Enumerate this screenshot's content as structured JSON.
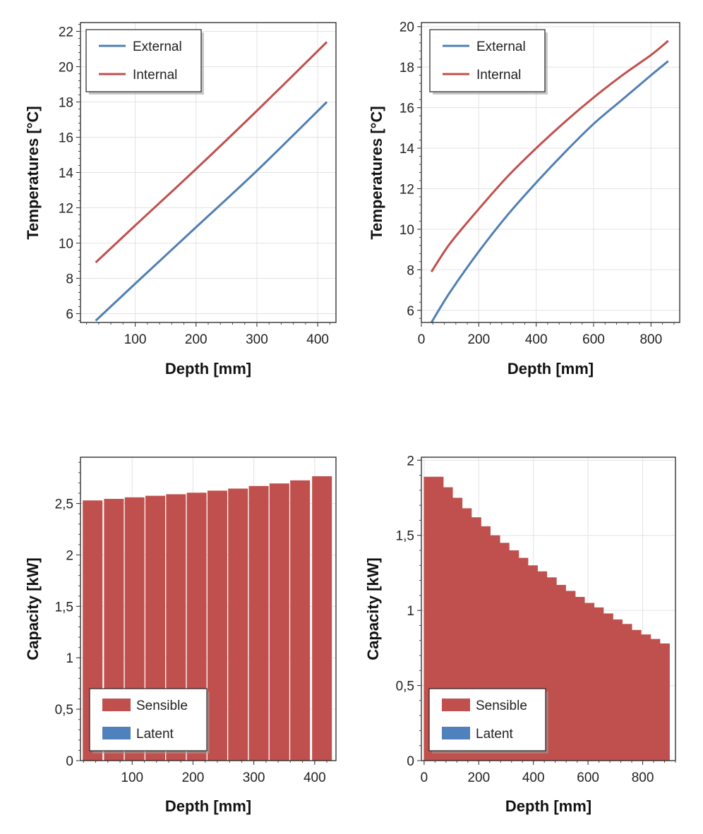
{
  "chart_data": [
    {
      "type": "line",
      "xlabel": "Depth [mm]",
      "ylabel": "Temperatures [°C]",
      "xlim": [
        10,
        430
      ],
      "ylim": [
        5.5,
        22.5
      ],
      "xticks": [
        100,
        200,
        300,
        400
      ],
      "xtick_labels": [
        "100",
        "200",
        "300",
        "400"
      ],
      "yticks": [
        6,
        8,
        10,
        12,
        14,
        16,
        18,
        20,
        22
      ],
      "ytick_labels": [
        "6",
        "8",
        "10",
        "12",
        "14",
        "16",
        "18",
        "20",
        "22"
      ],
      "grid": true,
      "legend_position": "top-left",
      "series": [
        {
          "name": "External",
          "color": "#4f7fb4",
          "x": [
            35,
            100,
            200,
            300,
            415
          ],
          "y": [
            5.6,
            7.7,
            10.9,
            14.1,
            18.0
          ]
        },
        {
          "name": "Internal",
          "color": "#c0504d",
          "x": [
            35,
            100,
            200,
            300,
            415
          ],
          "y": [
            8.9,
            11.0,
            14.2,
            17.5,
            21.4
          ]
        }
      ]
    },
    {
      "type": "line",
      "xlabel": "Depth [mm]",
      "ylabel": "Temperatures [°C]",
      "xlim": [
        0,
        900
      ],
      "ylim": [
        5.4,
        20.2
      ],
      "xticks": [
        0,
        200,
        400,
        600,
        800
      ],
      "xtick_labels": [
        "0",
        "200",
        "400",
        "600",
        "800"
      ],
      "yticks": [
        6,
        8,
        10,
        12,
        14,
        16,
        18,
        20
      ],
      "ytick_labels": [
        "6",
        "8",
        "10",
        "12",
        "14",
        "16",
        "18",
        "20"
      ],
      "grid": true,
      "legend_position": "top-left",
      "series": [
        {
          "name": "External",
          "color": "#4f7fb4",
          "x": [
            35,
            100,
            200,
            300,
            400,
            500,
            600,
            700,
            800,
            860
          ],
          "y": [
            5.4,
            6.9,
            8.9,
            10.7,
            12.3,
            13.8,
            15.2,
            16.4,
            17.6,
            18.3
          ]
        },
        {
          "name": "Internal",
          "color": "#c0504d",
          "x": [
            35,
            100,
            200,
            300,
            400,
            500,
            600,
            700,
            800,
            860
          ],
          "y": [
            7.9,
            9.3,
            11.0,
            12.6,
            14.0,
            15.3,
            16.5,
            17.6,
            18.6,
            19.3
          ]
        }
      ]
    },
    {
      "type": "bar",
      "xlabel": "Depth [mm]",
      "ylabel": "Capacity [kW]",
      "xlim": [
        15,
        435
      ],
      "ylim": [
        0,
        2.95
      ],
      "xticks": [
        100,
        200,
        300,
        400
      ],
      "xtick_labels": [
        "100",
        "200",
        "300",
        "400"
      ],
      "yticks": [
        0,
        0.5,
        1,
        1.5,
        2,
        2.5
      ],
      "ytick_labels": [
        "0",
        "0,5",
        "1",
        "1,5",
        "2",
        "2,5"
      ],
      "grid": true,
      "legend_position": "bottom-left",
      "bar_width": 28,
      "series": [
        {
          "name": "Sensible",
          "color": "#c0504d",
          "x": [
            35,
            70,
            104,
            138,
            172,
            206,
            240,
            274,
            308,
            342,
            376,
            412
          ],
          "values": [
            2.53,
            2.545,
            2.56,
            2.575,
            2.59,
            2.605,
            2.625,
            2.645,
            2.67,
            2.695,
            2.725,
            2.765
          ]
        },
        {
          "name": "Latent",
          "color": "#4f81bd",
          "x": [],
          "values": []
        }
      ]
    },
    {
      "type": "bar",
      "xlabel": "Depth [mm]",
      "ylabel": "Capacity [kW]",
      "xlim": [
        -10,
        920
      ],
      "ylim": [
        0,
        2.02
      ],
      "xticks": [
        0,
        200,
        400,
        600,
        800
      ],
      "xtick_labels": [
        "0",
        "200",
        "400",
        "600",
        "800"
      ],
      "yticks": [
        0,
        0.5,
        1,
        1.5,
        2
      ],
      "ytick_labels": [
        "0",
        "0,5",
        "1",
        "1,5",
        "2"
      ],
      "grid": true,
      "legend_position": "bottom-left",
      "bar_width": 28,
      "series": [
        {
          "name": "Sensible",
          "color": "#c0504d",
          "x": [
            35,
            69,
            104,
            138,
            173,
            207,
            242,
            276,
            311,
            345,
            380,
            414,
            449,
            483,
            518,
            552,
            587,
            621,
            656,
            690,
            725,
            759,
            794,
            828,
            863
          ],
          "values": [
            1.89,
            1.82,
            1.75,
            1.68,
            1.62,
            1.56,
            1.5,
            1.45,
            1.4,
            1.35,
            1.3,
            1.26,
            1.22,
            1.17,
            1.13,
            1.09,
            1.05,
            1.02,
            0.98,
            0.94,
            0.91,
            0.87,
            0.84,
            0.81,
            0.78
          ]
        },
        {
          "name": "Latent",
          "color": "#4f81bd",
          "x": [],
          "values": []
        }
      ]
    }
  ]
}
